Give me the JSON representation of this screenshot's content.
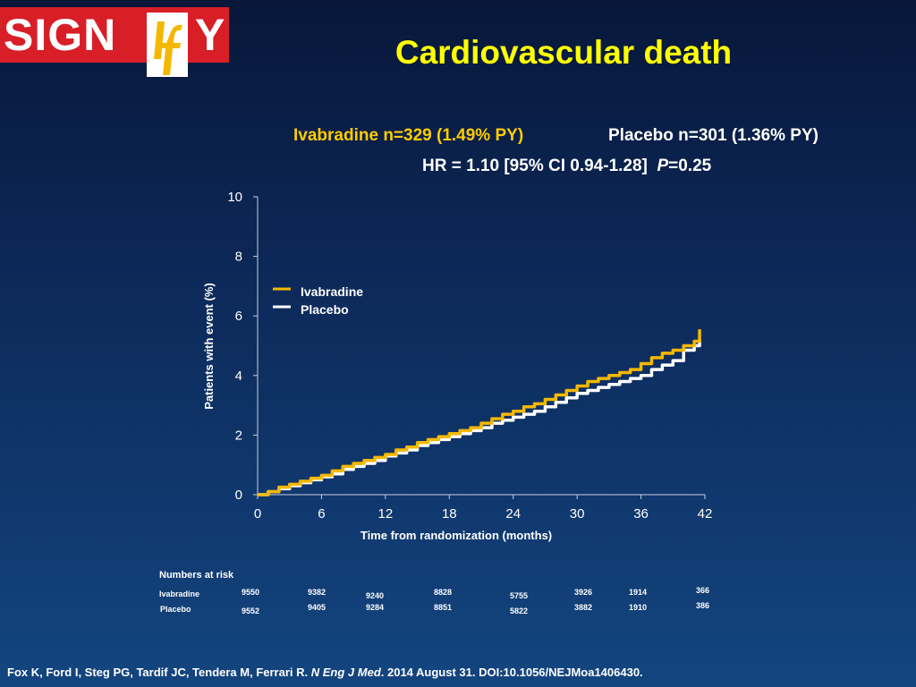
{
  "logo": {
    "brand": "SIGNIFY",
    "text_left": "SIGN",
    "text_right": "Y",
    "color": "#d81e27"
  },
  "title": "Cardiovascular death",
  "stats": {
    "ivabradine": "Ivabradine n=329 (1.49% PY)",
    "placebo": "Placebo n=301 (1.36% PY)",
    "hr": "HR = 1.10 [95% CI 0.94-1.28]",
    "p_label": "P",
    "p_value": "=0.25"
  },
  "chart_data": {
    "type": "line",
    "title": "",
    "xlabel": "Time from randomization (months)",
    "ylabel": "Patients with event (%)",
    "xlim": [
      0,
      42
    ],
    "ylim": [
      0,
      10
    ],
    "x_ticks": [
      0,
      6,
      12,
      18,
      24,
      30,
      36,
      42
    ],
    "y_ticks": [
      0,
      2,
      4,
      6,
      8,
      10
    ],
    "legend": "upper-left",
    "series": [
      {
        "name": "Ivabradine",
        "color": "#f5b800",
        "x": [
          0,
          1,
          2,
          3,
          4,
          5,
          6,
          7,
          8,
          9,
          10,
          11,
          12,
          13,
          14,
          15,
          16,
          17,
          18,
          19,
          20,
          21,
          22,
          23,
          24,
          25,
          26,
          27,
          28,
          29,
          30,
          31,
          32,
          33,
          34,
          35,
          36,
          37,
          38,
          39,
          40,
          41,
          41.5
        ],
        "y": [
          0,
          0.1,
          0.25,
          0.35,
          0.45,
          0.55,
          0.65,
          0.8,
          0.95,
          1.05,
          1.15,
          1.25,
          1.35,
          1.5,
          1.6,
          1.75,
          1.85,
          1.95,
          2.05,
          2.15,
          2.25,
          2.4,
          2.55,
          2.7,
          2.8,
          2.95,
          3.05,
          3.2,
          3.35,
          3.5,
          3.65,
          3.8,
          3.9,
          4.0,
          4.1,
          4.2,
          4.4,
          4.6,
          4.75,
          4.85,
          5.0,
          5.15,
          5.55
        ]
      },
      {
        "name": "Placebo",
        "color": "#ffffff",
        "x": [
          0,
          1,
          2,
          3,
          4,
          5,
          6,
          7,
          8,
          9,
          10,
          11,
          12,
          13,
          14,
          15,
          16,
          17,
          18,
          19,
          20,
          21,
          22,
          23,
          24,
          25,
          26,
          27,
          28,
          29,
          30,
          31,
          32,
          33,
          34,
          35,
          36,
          37,
          38,
          39,
          40,
          41,
          41.5
        ],
        "y": [
          0,
          0.1,
          0.2,
          0.3,
          0.4,
          0.5,
          0.6,
          0.7,
          0.85,
          0.95,
          1.05,
          1.15,
          1.3,
          1.4,
          1.5,
          1.65,
          1.75,
          1.85,
          1.95,
          2.05,
          2.15,
          2.25,
          2.4,
          2.5,
          2.6,
          2.7,
          2.8,
          2.95,
          3.1,
          3.25,
          3.4,
          3.5,
          3.6,
          3.7,
          3.8,
          3.9,
          4.0,
          4.2,
          4.35,
          4.5,
          4.85,
          5.0,
          5.2
        ]
      }
    ]
  },
  "risk_table": {
    "title": "Numbers at risk",
    "rows": [
      {
        "label": "Ivabradine",
        "values": [
          "9550",
          "9382",
          "9240",
          "8828",
          "5755",
          "3926",
          "1914",
          "366"
        ]
      },
      {
        "label": "Placebo",
        "values": [
          "9552",
          "9405",
          "9284",
          "8851",
          "5822",
          "3882",
          "1910",
          "386"
        ]
      }
    ]
  },
  "footer": {
    "authors": "Fox K, Ford I, Steg PG, Tardif JC, Tendera M, Ferrari R. ",
    "journal": "N Eng J Med",
    "rest": ". 2014 August 31. DOI:10.1056/NEJMoa1406430."
  }
}
